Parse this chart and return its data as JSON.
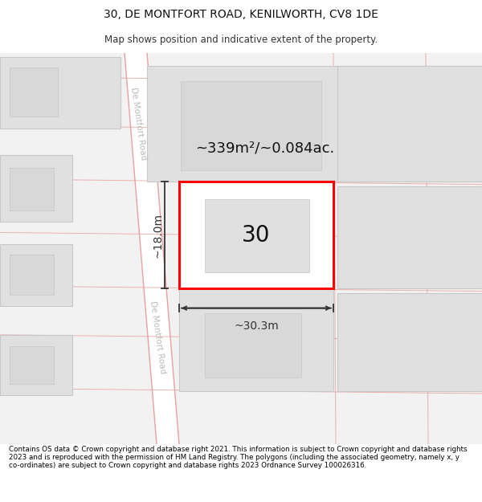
{
  "title_line1": "30, DE MONTFORT ROAD, KENILWORTH, CV8 1DE",
  "title_line2": "Map shows position and indicative extent of the property.",
  "footer_text": "Contains OS data © Crown copyright and database right 2021. This information is subject to Crown copyright and database rights 2023 and is reproduced with the permission of HM Land Registry. The polygons (including the associated geometry, namely x, y co-ordinates) are subject to Crown copyright and database rights 2023 Ordnance Survey 100026316.",
  "bg_color": "#ffffff",
  "map_bg": "#f0f0f0",
  "road_fill": "#ffffff",
  "road_border_color": "#e8a0a0",
  "building_fill": "#e0e0e0",
  "building_edge": "#c8c8c8",
  "property_fill": "#ffffff",
  "property_edge": "#ff0000",
  "dim_color": "#333333",
  "road_text_color": "#bbbbbb",
  "property_number": "30",
  "area_label": "~339m²/~0.084ac.",
  "width_label": "~30.3m",
  "height_label": "~18.0m",
  "road_label": "De Montfort Road"
}
